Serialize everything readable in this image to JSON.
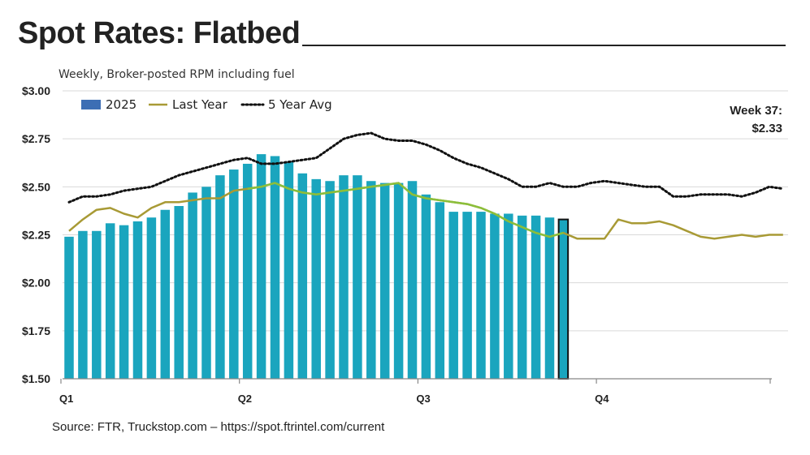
{
  "header": {
    "title": "Spot Rates: Flatbed",
    "subtitle": "Weekly, Broker-posted RPM including fuel"
  },
  "footer": {
    "source": "Source: FTR, Truckstop.com – https://spot.ftrintel.com/current"
  },
  "colors": {
    "bar": "#1aa5be",
    "bar_highlight_stroke": "#111111",
    "bar_legend": "#3d6eb4",
    "last_year": "#a89a35",
    "last_year_overlap": "#8bbf3a",
    "five_year_avg": "#111111",
    "grid": "#d9d9d9",
    "axis": "#888888"
  },
  "chart_data": {
    "type": "bar",
    "title": "Spot Rates: Flatbed",
    "subtitle": "Weekly, Broker-posted RPM including fuel",
    "xlabel": "",
    "ylabel": "",
    "ylim": [
      1.5,
      3.0
    ],
    "yticks": [
      1.5,
      1.75,
      2.0,
      2.25,
      2.5,
      2.75,
      3.0
    ],
    "ytick_labels": [
      "$1.50",
      "$1.75",
      "$2.00",
      "$2.25",
      "$2.50",
      "$2.75",
      "$3.00"
    ],
    "x_weeks": 52,
    "quarter_labels": [
      "Q1",
      "Q2",
      "Q3",
      "Q4"
    ],
    "quarter_start_weeks": [
      1,
      14,
      27,
      40
    ],
    "legend": {
      "placement": "top-left",
      "entries": [
        "2025",
        "Last Year",
        "5 Year Avg"
      ]
    },
    "annotation": {
      "line1": "Week 37:",
      "line2": "$2.33",
      "week": 37,
      "value": 2.33
    },
    "grid": true,
    "series": [
      {
        "name": "2025",
        "type": "bar",
        "values": [
          2.24,
          2.27,
          2.27,
          2.31,
          2.3,
          2.32,
          2.34,
          2.38,
          2.4,
          2.47,
          2.5,
          2.56,
          2.59,
          2.62,
          2.67,
          2.66,
          2.63,
          2.57,
          2.54,
          2.53,
          2.56,
          2.56,
          2.53,
          2.52,
          2.52,
          2.53,
          2.46,
          2.42,
          2.37,
          2.37,
          2.37,
          2.36,
          2.36,
          2.35,
          2.35,
          2.34,
          2.33
        ]
      },
      {
        "name": "Last Year",
        "type": "line",
        "values": [
          2.27,
          2.33,
          2.38,
          2.39,
          2.36,
          2.34,
          2.39,
          2.42,
          2.42,
          2.43,
          2.44,
          2.44,
          2.48,
          2.49,
          2.5,
          2.52,
          2.49,
          2.47,
          2.46,
          2.47,
          2.48,
          2.49,
          2.5,
          2.51,
          2.52,
          2.46,
          2.44,
          2.43,
          2.42,
          2.41,
          2.39,
          2.36,
          2.32,
          2.29,
          2.26,
          2.24,
          2.26,
          2.23,
          2.23,
          2.23,
          2.33,
          2.31,
          2.31,
          2.32,
          2.3,
          2.27,
          2.24,
          2.23,
          2.24,
          2.25,
          2.24,
          2.25,
          2.25
        ]
      },
      {
        "name": "5 Year Avg",
        "type": "line",
        "values": [
          2.42,
          2.45,
          2.45,
          2.46,
          2.48,
          2.49,
          2.5,
          2.53,
          2.56,
          2.58,
          2.6,
          2.62,
          2.64,
          2.65,
          2.62,
          2.62,
          2.63,
          2.64,
          2.65,
          2.7,
          2.75,
          2.77,
          2.78,
          2.75,
          2.74,
          2.74,
          2.72,
          2.69,
          2.65,
          2.62,
          2.6,
          2.57,
          2.54,
          2.5,
          2.5,
          2.52,
          2.5,
          2.5,
          2.52,
          2.53,
          2.52,
          2.51,
          2.5,
          2.5,
          2.45,
          2.45,
          2.46,
          2.46,
          2.46,
          2.45,
          2.47,
          2.5,
          2.49
        ]
      }
    ]
  }
}
